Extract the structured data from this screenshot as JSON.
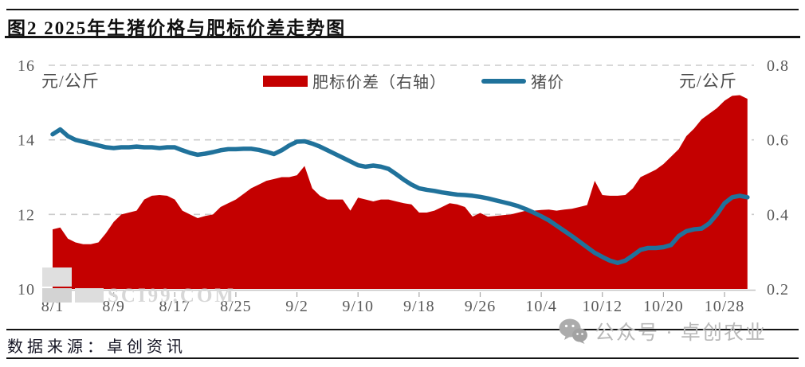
{
  "title": "图2  2025年生猪价格与肥标价差走势图",
  "source": "数据来源：卓创资讯",
  "watermarks": {
    "sci": "SCI99.COM",
    "wechat": "公众号 · 卓创农业"
  },
  "legend": [
    {
      "label": "肥标价差（右轴）",
      "color": "#C40000"
    },
    {
      "label": "猪价",
      "color": "#20729B"
    }
  ],
  "chart_data": {
    "type": "combo",
    "title": "2025年生猪价格与肥标价差走势图",
    "left_unit": "元/公斤",
    "right_unit": "元/公斤",
    "left_range": [
      10,
      16
    ],
    "right_range": [
      0.2,
      0.8
    ],
    "left_ticks": [
      16,
      14,
      12,
      10
    ],
    "right_ticks": [
      "0.8",
      "0.6",
      "0.4",
      "0.2"
    ],
    "x_tick_every": 8,
    "grid": "dashed-horizontal",
    "legend_position": "top-center",
    "categories": [
      "8/1",
      "8/2",
      "8/3",
      "8/4",
      "8/5",
      "8/6",
      "8/7",
      "8/8",
      "8/9",
      "8/10",
      "8/11",
      "8/12",
      "8/13",
      "8/14",
      "8/15",
      "8/16",
      "8/17",
      "8/18",
      "8/19",
      "8/20",
      "8/21",
      "8/22",
      "8/23",
      "8/24",
      "8/25",
      "8/26",
      "8/27",
      "8/28",
      "8/29",
      "8/30",
      "8/31",
      "9/1",
      "9/2",
      "9/3",
      "9/4",
      "9/5",
      "9/6",
      "9/7",
      "9/8",
      "9/9",
      "9/10",
      "9/11",
      "9/12",
      "9/13",
      "9/14",
      "9/15",
      "9/16",
      "9/17",
      "9/18",
      "9/19",
      "9/20",
      "9/21",
      "9/22",
      "9/23",
      "9/24",
      "9/25",
      "9/26",
      "9/27",
      "9/28",
      "9/29",
      "9/30",
      "10/1",
      "10/2",
      "10/3",
      "10/4",
      "10/5",
      "10/6",
      "10/7",
      "10/8",
      "10/9",
      "10/10",
      "10/11",
      "10/12",
      "10/13",
      "10/14",
      "10/15",
      "10/16",
      "10/17",
      "10/18",
      "10/19",
      "10/20",
      "10/21",
      "10/22",
      "10/23",
      "10/24",
      "10/25",
      "10/26",
      "10/27",
      "10/28",
      "10/29",
      "10/30",
      "10/31"
    ],
    "series": [
      {
        "name": "肥标价差（右轴）",
        "type": "area",
        "axis": "right",
        "color": "#C40000",
        "values": [
          0.36,
          0.365,
          0.335,
          0.325,
          0.32,
          0.32,
          0.325,
          0.35,
          0.38,
          0.4,
          0.405,
          0.41,
          0.44,
          0.45,
          0.452,
          0.45,
          0.44,
          0.41,
          0.4,
          0.39,
          0.396,
          0.4,
          0.42,
          0.43,
          0.44,
          0.455,
          0.47,
          0.48,
          0.49,
          0.495,
          0.5,
          0.5,
          0.505,
          0.53,
          0.47,
          0.45,
          0.44,
          0.44,
          0.44,
          0.41,
          0.445,
          0.44,
          0.435,
          0.44,
          0.44,
          0.435,
          0.43,
          0.427,
          0.405,
          0.405,
          0.41,
          0.42,
          0.43,
          0.427,
          0.42,
          0.394,
          0.404,
          0.394,
          0.396,
          0.398,
          0.4,
          0.405,
          0.41,
          0.41,
          0.412,
          0.413,
          0.41,
          0.413,
          0.415,
          0.42,
          0.425,
          0.49,
          0.452,
          0.45,
          0.45,
          0.452,
          0.47,
          0.5,
          0.51,
          0.52,
          0.535,
          0.555,
          0.575,
          0.61,
          0.63,
          0.655,
          0.67,
          0.685,
          0.705,
          0.718,
          0.72,
          0.71
        ]
      },
      {
        "name": "猪价",
        "type": "line",
        "axis": "left",
        "color": "#20729B",
        "values": [
          14.15,
          14.28,
          14.1,
          14.0,
          13.95,
          13.9,
          13.85,
          13.8,
          13.78,
          13.8,
          13.8,
          13.82,
          13.8,
          13.8,
          13.78,
          13.8,
          13.8,
          13.72,
          13.65,
          13.6,
          13.63,
          13.67,
          13.72,
          13.75,
          13.75,
          13.76,
          13.76,
          13.73,
          13.68,
          13.62,
          13.72,
          13.85,
          13.95,
          13.96,
          13.9,
          13.82,
          13.72,
          13.62,
          13.52,
          13.42,
          13.32,
          13.28,
          13.31,
          13.28,
          13.22,
          13.08,
          12.93,
          12.8,
          12.7,
          12.66,
          12.63,
          12.59,
          12.56,
          12.53,
          12.52,
          12.5,
          12.47,
          12.43,
          12.38,
          12.33,
          12.28,
          12.22,
          12.14,
          12.05,
          11.95,
          11.84,
          11.7,
          11.56,
          11.42,
          11.27,
          11.12,
          10.97,
          10.86,
          10.76,
          10.7,
          10.76,
          10.9,
          11.05,
          11.1,
          11.1,
          11.12,
          11.18,
          11.42,
          11.55,
          11.6,
          11.62,
          11.76,
          12.0,
          12.3,
          12.46,
          12.5,
          12.46
        ]
      }
    ]
  }
}
